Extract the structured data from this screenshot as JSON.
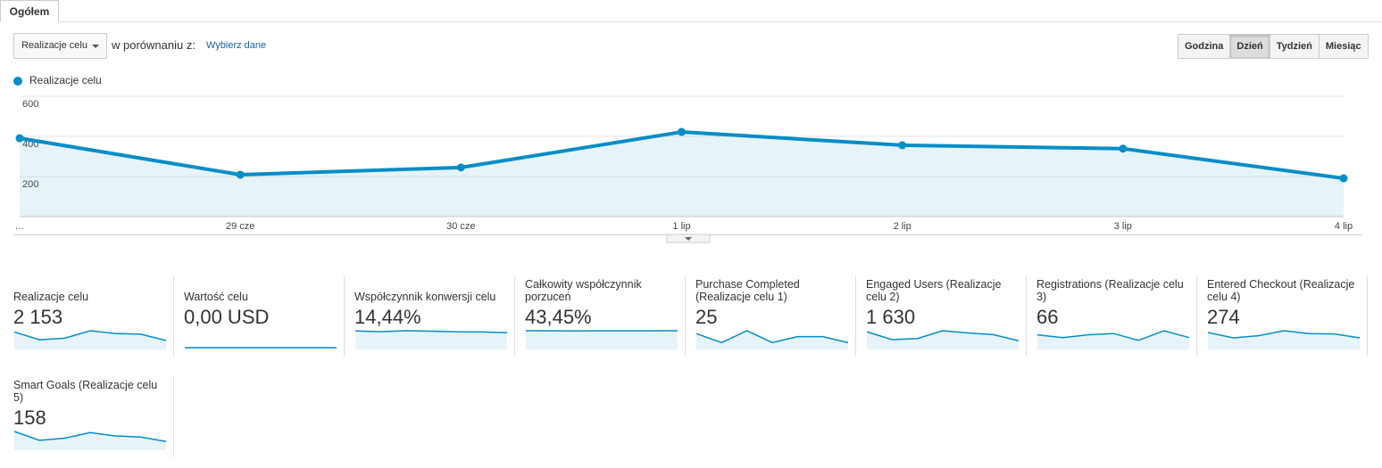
{
  "tab": "Ogółem",
  "controls": {
    "metric_select": "Realizacje celu",
    "compare_label": "w porównaniu z:",
    "compare_link": "Wybierz dane",
    "granularity": [
      "Godzina",
      "Dzień",
      "Tydzień",
      "Miesiąc"
    ]
  },
  "chart_data": {
    "type": "line",
    "area": true,
    "grid": true,
    "categories": [
      "…",
      "29 cze",
      "30 cze",
      "1 lip",
      "2 lip",
      "3 lip",
      "4 lip"
    ],
    "series": [
      {
        "name": "Realizacje celu",
        "color": "#058dc7",
        "values": [
          391,
          209,
          245,
          422,
          356,
          339,
          191
        ]
      }
    ],
    "ylim": [
      0,
      600
    ],
    "yticks": [
      200,
      400,
      600
    ]
  },
  "metrics": [
    {
      "label": "Realizacje celu",
      "value": "2 153",
      "spark": [
        391,
        209,
        245,
        422,
        356,
        339,
        191
      ]
    },
    {
      "label": "Wartość celu",
      "value": "0,00 USD",
      "spark": [
        0,
        0,
        0,
        0,
        0,
        0,
        0
      ]
    },
    {
      "label": "Współczynnik konwersji celu",
      "value": "14,44%",
      "spark": [
        14.8,
        14.2,
        15.0,
        14.6,
        14.1,
        14.0,
        13.3
      ]
    },
    {
      "label": "Całkowity współczynnik porzuceń",
      "value": "43,45%",
      "spark": [
        43.8,
        43.4,
        43.3,
        43.4,
        43.6,
        43.4,
        43.8
      ]
    },
    {
      "label": "Purchase Completed (Realizacje celu 1)",
      "value": "25",
      "spark": [
        5,
        2,
        6,
        2,
        4,
        4,
        2
      ]
    },
    {
      "label": "Engaged Users (Realizacje celu 2)",
      "value": "1 630",
      "spark": [
        300,
        160,
        180,
        320,
        280,
        250,
        140
      ]
    },
    {
      "label": "Registrations (Realizacje celu 3)",
      "value": "66",
      "spark": [
        10,
        8,
        10,
        11,
        6,
        13,
        8
      ]
    },
    {
      "label": "Entered Checkout (Realizacje celu 4)",
      "value": "274",
      "spark": [
        45,
        30,
        36,
        50,
        42,
        41,
        30
      ]
    },
    {
      "label": "Smart Goals (Realizacje celu 5)",
      "value": "158",
      "spark": [
        32,
        16,
        20,
        30,
        24,
        22,
        14
      ]
    }
  ]
}
